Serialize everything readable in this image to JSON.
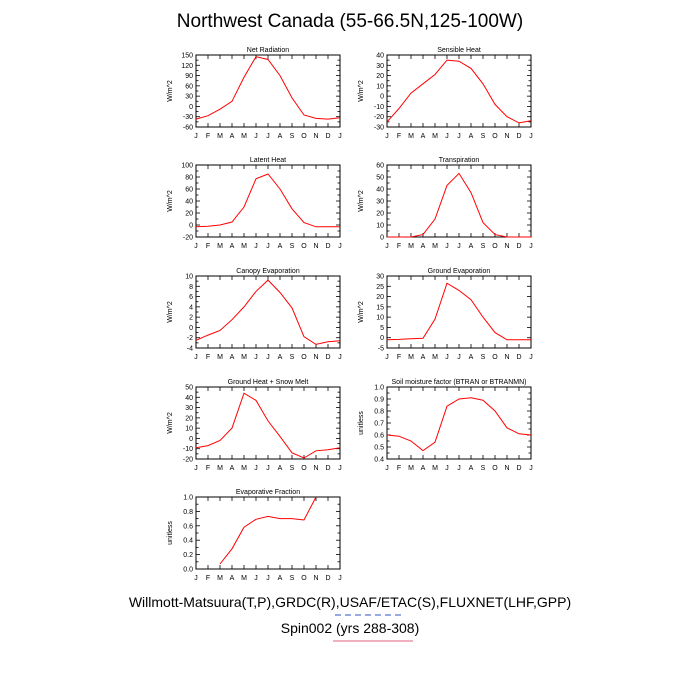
{
  "page": {
    "title": "Northwest Canada (55-66.5N,125-100W)",
    "footer_line1": "Willmott-Matsuura(T,P),GRDC(R),USAF/ETAC(S),FLUXNET(LHF,GPP)",
    "footer_line2": "Spin002 (yrs 288-308)",
    "line_color": "#ff0000",
    "footer_line_color": "#e06080",
    "footer_dash_color": "#3050c0"
  },
  "chart_data": [
    {
      "type": "line",
      "title": "Net Radiation",
      "ylabel": "W/m^2",
      "categories": [
        "J",
        "F",
        "M",
        "A",
        "M",
        "J",
        "J",
        "A",
        "S",
        "O",
        "N",
        "D",
        "J"
      ],
      "ylim": [
        -60,
        150
      ],
      "yticks": [
        -60,
        -45,
        -30,
        -15,
        0,
        15,
        30,
        45,
        60,
        75,
        90,
        105,
        120,
        135,
        150
      ],
      "ytick_labels": [
        "-60",
        "-30",
        "0",
        "30",
        "60",
        "90",
        "120",
        "150"
      ],
      "values": [
        -37,
        -27,
        -8,
        15,
        85,
        145,
        137,
        90,
        25,
        -25,
        -35,
        -37,
        -33
      ]
    },
    {
      "type": "line",
      "title": "Sensible Heat",
      "ylabel": "W/m^2",
      "categories": [
        "J",
        "F",
        "M",
        "A",
        "M",
        "J",
        "J",
        "A",
        "S",
        "O",
        "N",
        "D",
        "J"
      ],
      "ylim": [
        -30,
        40
      ],
      "yticks": [
        -30,
        -25,
        -20,
        -15,
        -10,
        -5,
        0,
        5,
        10,
        15,
        20,
        25,
        30,
        35,
        40
      ],
      "ytick_labels": [
        "-30",
        "-20",
        "-10",
        "0",
        "10",
        "20",
        "30",
        "40"
      ],
      "values": [
        -25,
        -12,
        3,
        12,
        21,
        35,
        34,
        27,
        12,
        -8,
        -20,
        -26,
        -24
      ]
    },
    {
      "type": "line",
      "title": "Latent Heat",
      "ylabel": "W/m^2",
      "categories": [
        "J",
        "F",
        "M",
        "A",
        "M",
        "J",
        "J",
        "A",
        "S",
        "O",
        "N",
        "D",
        "J"
      ],
      "ylim": [
        -20,
        100
      ],
      "yticks": [
        -20,
        -10,
        0,
        10,
        20,
        30,
        40,
        50,
        60,
        70,
        80,
        90,
        100
      ],
      "ytick_labels": [
        "-20",
        "0",
        "20",
        "40",
        "60",
        "80",
        "100"
      ],
      "values": [
        -3,
        -2,
        0,
        5,
        30,
        77,
        85,
        60,
        27,
        4,
        -3,
        -3,
        -3
      ]
    },
    {
      "type": "line",
      "title": "Transpiration",
      "ylabel": "W/m^2",
      "categories": [
        "J",
        "F",
        "M",
        "A",
        "M",
        "J",
        "J",
        "A",
        "S",
        "O",
        "N",
        "D",
        "J"
      ],
      "ylim": [
        0,
        60
      ],
      "yticks": [
        0,
        5,
        10,
        15,
        20,
        25,
        30,
        35,
        40,
        45,
        50,
        55,
        60
      ],
      "ytick_labels": [
        "0",
        "10",
        "20",
        "30",
        "40",
        "50",
        "60"
      ],
      "values": [
        0,
        0,
        0,
        2,
        15,
        43,
        53,
        37,
        12,
        2,
        0,
        0,
        0
      ]
    },
    {
      "type": "line",
      "title": "Canopy Evaporation",
      "ylabel": "W/m^2",
      "categories": [
        "J",
        "F",
        "M",
        "A",
        "M",
        "J",
        "J",
        "A",
        "S",
        "O",
        "N",
        "D",
        "J"
      ],
      "ylim": [
        -4,
        10
      ],
      "yticks": [
        -4,
        -3,
        -2,
        -1,
        0,
        1,
        2,
        3,
        4,
        5,
        6,
        7,
        8,
        9,
        10
      ],
      "ytick_labels": [
        "-4",
        "-2",
        "0",
        "2",
        "4",
        "6",
        "8",
        "10"
      ],
      "values": [
        -2.5,
        -1.5,
        -0.6,
        1.5,
        4,
        7,
        9.2,
        6.8,
        3.8,
        -1.8,
        -3.3,
        -2.8,
        -2.6
      ]
    },
    {
      "type": "line",
      "title": "Ground Evaporation",
      "ylabel": "W/m^2",
      "categories": [
        "J",
        "F",
        "M",
        "A",
        "M",
        "J",
        "J",
        "A",
        "S",
        "O",
        "N",
        "D",
        "J"
      ],
      "ylim": [
        -5,
        30
      ],
      "yticks": [
        -5,
        0,
        5,
        10,
        15,
        20,
        25,
        30
      ],
      "ytick_labels": [
        "-5",
        "0",
        "5",
        "10",
        "15",
        "20",
        "25",
        "30"
      ],
      "values": [
        -1,
        -0.8,
        -0.5,
        -0.3,
        9,
        26.5,
        23,
        18.5,
        10,
        2.5,
        -1,
        -1,
        -1
      ]
    },
    {
      "type": "line",
      "title": "Ground Heat + Snow Melt",
      "ylabel": "W/m^2",
      "categories": [
        "J",
        "F",
        "M",
        "A",
        "M",
        "J",
        "J",
        "A",
        "S",
        "O",
        "N",
        "D",
        "J"
      ],
      "ylim": [
        -20,
        50
      ],
      "yticks": [
        -20,
        -15,
        -10,
        -5,
        0,
        5,
        10,
        15,
        20,
        25,
        30,
        35,
        40,
        45,
        50
      ],
      "ytick_labels": [
        "-20",
        "-10",
        "0",
        "10",
        "20",
        "30",
        "40",
        "50"
      ],
      "values": [
        -9,
        -7,
        -2,
        10,
        44,
        37,
        17,
        2,
        -14,
        -19,
        -12,
        -11,
        -9
      ]
    },
    {
      "type": "line",
      "title": "Soil moisture factor (BTRAN or BTRANMN)",
      "ylabel": "unitless",
      "categories": [
        "J",
        "F",
        "M",
        "A",
        "M",
        "J",
        "J",
        "A",
        "S",
        "O",
        "N",
        "D",
        "J"
      ],
      "ylim": [
        0.4,
        1.0
      ],
      "yticks": [
        0.4,
        0.45,
        0.5,
        0.55,
        0.6,
        0.65,
        0.7,
        0.75,
        0.8,
        0.85,
        0.9,
        0.95,
        1.0
      ],
      "ytick_labels": [
        "0.4",
        "0.5",
        "0.6",
        "0.7",
        "0.8",
        "0.9",
        "1.0"
      ],
      "values": [
        0.6,
        0.59,
        0.55,
        0.47,
        0.54,
        0.84,
        0.9,
        0.91,
        0.89,
        0.8,
        0.66,
        0.61,
        0.6
      ]
    },
    {
      "type": "line",
      "title": "Evaporative Fraction",
      "ylabel": "unitless",
      "categories": [
        "J",
        "F",
        "M",
        "A",
        "M",
        "J",
        "J",
        "A",
        "S",
        "O",
        "N",
        "D",
        "J"
      ],
      "ylim": [
        0.0,
        1.0
      ],
      "yticks": [
        0.0,
        0.1,
        0.2,
        0.3,
        0.4,
        0.5,
        0.6,
        0.7,
        0.8,
        0.9,
        1.0
      ],
      "ytick_labels": [
        "0.0",
        "0.2",
        "0.4",
        "0.6",
        "0.8",
        "1.0"
      ],
      "values": [
        null,
        null,
        0.07,
        0.28,
        0.58,
        0.69,
        0.73,
        0.7,
        0.7,
        0.68,
        1.0,
        null,
        null
      ]
    }
  ]
}
